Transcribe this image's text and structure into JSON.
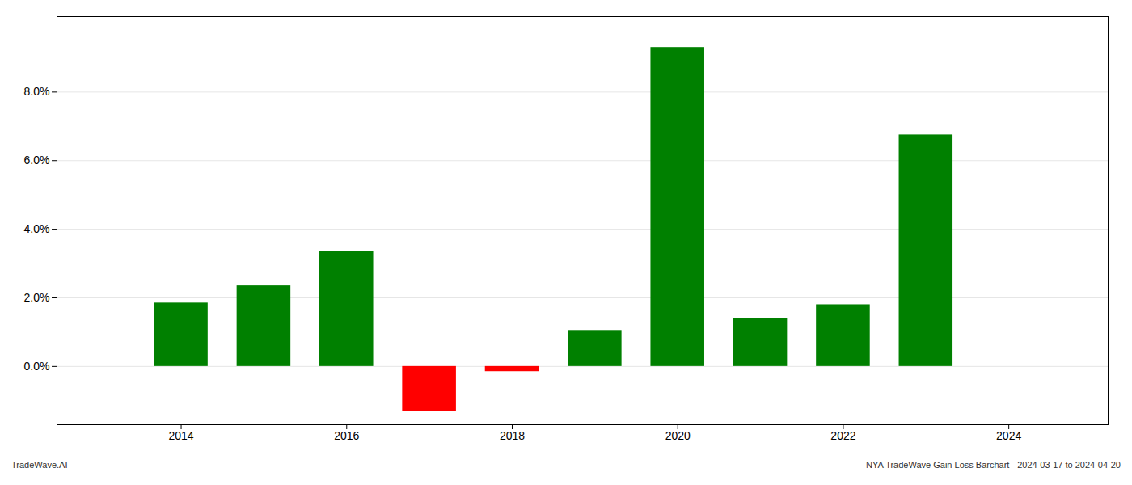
{
  "chart_data": {
    "type": "bar",
    "x": [
      2014,
      2015,
      2016,
      2017,
      2018,
      2019,
      2020,
      2021,
      2022,
      2023
    ],
    "values": [
      1.85,
      2.35,
      3.35,
      -1.3,
      -0.15,
      1.05,
      9.3,
      1.4,
      1.8,
      6.75
    ],
    "colors": [
      "#008000",
      "#008000",
      "#008000",
      "#ff0000",
      "#ff0000",
      "#008000",
      "#008000",
      "#008000",
      "#008000",
      "#008000"
    ],
    "xlim": [
      2012.5,
      2025.2
    ],
    "xticks": [
      2014,
      2016,
      2018,
      2020,
      2022,
      2024
    ],
    "ylim": [
      -1.7,
      10.2
    ],
    "yticks": [
      {
        "value": 0.0,
        "label": "0.0%"
      },
      {
        "value": 2.0,
        "label": "2.0%"
      },
      {
        "value": 4.0,
        "label": "4.0%"
      },
      {
        "value": 6.0,
        "label": "6.0%"
      },
      {
        "value": 8.0,
        "label": "8.0%"
      }
    ],
    "grid": true,
    "annotations": [
      "TradeWave.AI",
      "NYA TradeWave Gain Loss Barchart - 2024-03-17 to 2024-04-20"
    ]
  }
}
